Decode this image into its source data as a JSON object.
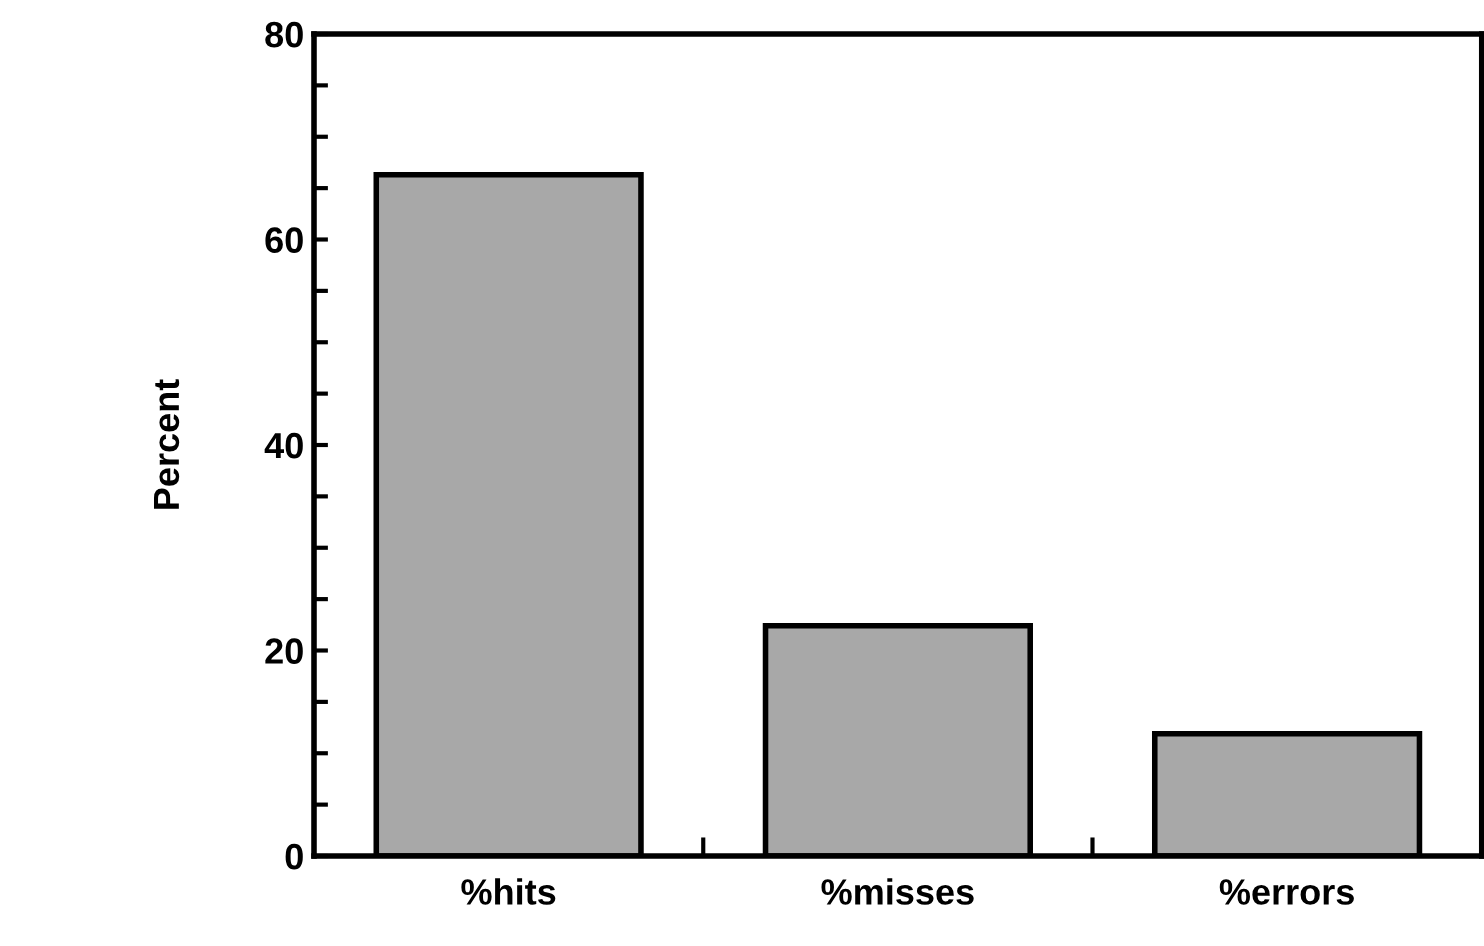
{
  "chart_data": {
    "type": "bar",
    "ylabel": "Percent",
    "categories": [
      "%hits",
      "%misses",
      "%errors"
    ],
    "values": [
      66.3,
      22.4,
      11.9
    ],
    "color": "#a8a8a8",
    "ylim": [
      0,
      80
    ],
    "yticks": [
      0,
      {
        "value": 5,
        "label": null
      },
      {
        "value": 10,
        "label": null
      },
      {
        "value": 15,
        "label": null
      },
      20,
      {
        "value": 25,
        "label": null
      },
      {
        "value": 30,
        "label": null
      },
      {
        "value": 35,
        "label": null
      },
      40,
      {
        "value": 45,
        "label": null
      },
      {
        "value": 50,
        "label": null
      },
      {
        "value": 55,
        "label": null
      },
      60,
      {
        "value": 65,
        "label": null
      },
      {
        "value": 70,
        "label": null
      },
      {
        "value": 75,
        "label": null
      },
      80
    ],
    "grid": false
  }
}
